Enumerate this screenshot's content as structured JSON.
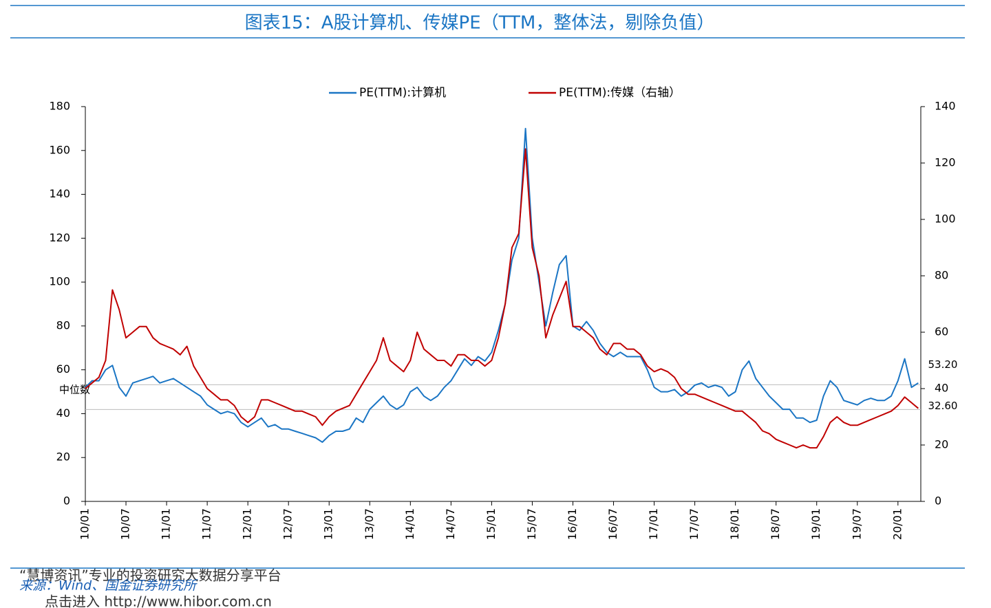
{
  "chart_data": {
    "type": "line",
    "title": "图表15：A股计算机、传媒PE（TTM，整体法，剔除负值）",
    "source": "来源：Wind、国金证券研究所",
    "watermark": [
      "“慧博资讯”专业的投资研究大数据分享平台",
      "点击进入 http://www.hibor.com.cn"
    ],
    "categories": [
      "10/01",
      null,
      null,
      null,
      null,
      null,
      "10/07",
      null,
      null,
      null,
      null,
      null,
      "11/01",
      null,
      null,
      null,
      null,
      null,
      "11/07",
      null,
      null,
      null,
      null,
      null,
      "12/01",
      null,
      null,
      null,
      null,
      null,
      "12/07",
      null,
      null,
      null,
      null,
      null,
      "13/01",
      null,
      null,
      null,
      null,
      null,
      "13/07",
      null,
      null,
      null,
      null,
      null,
      "14/01",
      null,
      null,
      null,
      null,
      null,
      "14/07",
      null,
      null,
      null,
      null,
      null,
      "15/01",
      null,
      null,
      null,
      null,
      null,
      "15/07",
      null,
      null,
      null,
      null,
      null,
      "16/01",
      null,
      null,
      null,
      null,
      null,
      "16/07",
      null,
      null,
      null,
      null,
      null,
      "17/01",
      null,
      null,
      null,
      null,
      null,
      "17/07",
      null,
      null,
      null,
      null,
      null,
      "18/01",
      null,
      null,
      null,
      null,
      null,
      "18/07",
      null,
      null,
      null,
      null,
      null,
      "19/01",
      null,
      null,
      null,
      null,
      null,
      "19/07",
      null,
      null,
      null,
      null,
      null,
      "20/01",
      null,
      null,
      null
    ],
    "series": [
      {
        "name": "PE(TTM):计算机",
        "color": "#1a75c4",
        "axis": "y",
        "values": [
          52,
          55,
          55,
          60,
          62,
          52,
          48,
          54,
          55,
          56,
          57,
          54,
          55,
          56,
          54,
          52,
          50,
          48,
          44,
          42,
          40,
          41,
          40,
          36,
          34,
          36,
          38,
          34,
          35,
          33,
          33,
          32,
          31,
          30,
          29,
          27,
          30,
          32,
          32,
          33,
          38,
          36,
          42,
          45,
          48,
          44,
          42,
          44,
          50,
          52,
          48,
          46,
          48,
          52,
          55,
          60,
          65,
          62,
          66,
          64,
          68,
          78,
          90,
          110,
          120,
          170,
          120,
          100,
          80,
          95,
          108,
          112,
          80,
          78,
          82,
          78,
          72,
          68,
          66,
          68,
          66,
          66,
          66,
          60,
          52,
          50,
          50,
          51,
          48,
          50,
          53,
          54,
          52,
          53,
          52,
          48,
          50,
          60,
          64,
          56,
          52,
          48,
          45,
          42,
          42,
          38,
          38,
          36,
          37,
          48,
          55,
          52,
          46,
          45,
          44,
          46,
          47,
          46,
          46,
          48,
          55,
          65,
          52,
          54
        ]
      },
      {
        "name": "PE(TTM):传媒（右轴）",
        "color": "#c00000",
        "axis": "y2",
        "values": [
          40,
          42,
          44,
          50,
          75,
          68,
          58,
          60,
          62,
          62,
          58,
          56,
          55,
          54,
          52,
          55,
          48,
          44,
          40,
          38,
          36,
          36,
          34,
          30,
          28,
          30,
          36,
          36,
          35,
          34,
          33,
          32,
          32,
          31,
          30,
          27,
          30,
          32,
          33,
          34,
          38,
          42,
          46,
          50,
          58,
          50,
          48,
          46,
          50,
          60,
          54,
          52,
          50,
          50,
          48,
          52,
          52,
          50,
          50,
          48,
          50,
          58,
          70,
          90,
          95,
          125,
          90,
          80,
          58,
          66,
          72,
          78,
          62,
          62,
          60,
          58,
          54,
          52,
          56,
          56,
          54,
          54,
          52,
          48,
          46,
          47,
          46,
          44,
          40,
          38,
          38,
          37,
          36,
          35,
          34,
          33,
          32,
          32,
          30,
          28,
          25,
          24,
          22,
          21,
          20,
          19,
          20,
          19,
          19,
          23,
          28,
          30,
          28,
          27,
          27,
          28,
          29,
          30,
          31,
          32,
          34,
          37,
          35,
          33
        ]
      }
    ],
    "median_label": "中位数",
    "medians": [
      {
        "label": "53.20",
        "value": 53.2,
        "axis": "y"
      },
      {
        "label": "32.60",
        "value": 32.6,
        "axis": "y2"
      }
    ],
    "ylim": [
      0,
      180
    ],
    "yticks": [
      0,
      20,
      40,
      60,
      80,
      100,
      120,
      140,
      160,
      180
    ],
    "y2lim": [
      0,
      140
    ],
    "y2ticks": [
      0,
      20,
      40,
      60,
      80,
      100,
      120,
      140
    ],
    "legend": "top"
  }
}
